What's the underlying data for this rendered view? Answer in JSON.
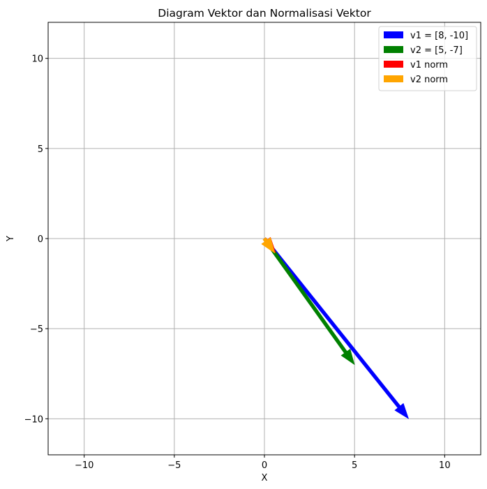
{
  "chart_data": {
    "type": "vector",
    "title": "Diagram Vektor dan Normalisasi Vektor",
    "xlabel": "X",
    "ylabel": "Y",
    "xlim": [
      -12,
      12
    ],
    "ylim": [
      -12,
      12
    ],
    "xticks": [
      -10,
      -5,
      0,
      5,
      10
    ],
    "yticks": [
      -10,
      -5,
      0,
      5,
      10
    ],
    "xtick_labels": [
      "−10",
      "−5",
      "0",
      "5",
      "10"
    ],
    "ytick_labels": [
      "−10",
      "−5",
      "0",
      "5",
      "10"
    ],
    "grid": true,
    "legend_position": "top-right",
    "series": [
      {
        "name": "v1 = [8, -10]",
        "color": "#0000ff",
        "origin": [
          0,
          0
        ],
        "vector": [
          8,
          -10
        ]
      },
      {
        "name": "v2 = [5, -7]",
        "color": "#008000",
        "origin": [
          0,
          0
        ],
        "vector": [
          5,
          -7
        ]
      },
      {
        "name": "v1 norm",
        "color": "#ff0000",
        "origin": [
          0,
          0
        ],
        "vector": [
          0.625,
          -0.781
        ]
      },
      {
        "name": "v2 norm",
        "color": "#ffa500",
        "origin": [
          0,
          0
        ],
        "vector": [
          0.581,
          -0.814
        ]
      }
    ]
  }
}
